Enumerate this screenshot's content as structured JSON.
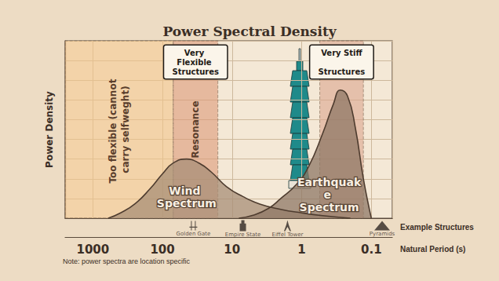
{
  "chart_data": {
    "type": "area",
    "title": "Power Spectral Density",
    "ylabel": "Power Density",
    "xlabel": "Natural Period (s)",
    "log": "x",
    "grid": true,
    "tick_labels": "x",
    "xlim": [
      2500,
      0.05
    ],
    "xticks": [
      1000,
      100,
      10,
      1,
      0.1
    ],
    "ylim": [
      0,
      9
    ],
    "yticks": [
      0,
      1,
      2,
      3,
      4,
      5,
      6,
      7,
      8,
      9
    ],
    "series": [
      {
        "name": "Wind Spectrum",
        "color": "#a88f77",
        "x": [
          600,
          400,
          250,
          150,
          100,
          70,
          45,
          30,
          20,
          12,
          7,
          4,
          2,
          1,
          0.5,
          0.2
        ],
        "values": [
          0,
          0.27,
          0.72,
          1.5,
          2.25,
          2.8,
          3.0,
          2.8,
          2.35,
          1.6,
          1.1,
          0.72,
          0.45,
          0.27,
          0.13,
          0
        ]
      },
      {
        "name": "Earthquake Spectrum",
        "color": "#8f7866",
        "x": [
          8,
          5,
          3,
          2,
          1.2,
          0.8,
          0.5,
          0.35,
          0.28,
          0.22,
          0.17,
          0.13,
          0.1
        ],
        "values": [
          0,
          0.15,
          0.5,
          1.0,
          1.7,
          2.6,
          4.3,
          5.8,
          6.5,
          6.2,
          4.6,
          2.0,
          0
        ]
      }
    ],
    "regions": [
      {
        "label": "Too flexible (cannot carry selfweght)",
        "from": 2500,
        "to": 70,
        "color": "#f2c58a"
      },
      {
        "label": "Resonance",
        "heading": "Very Flexible Structures",
        "from": 70,
        "to": 16,
        "color": "#dc9a78"
      },
      {
        "heading": "Very Stiff Structures",
        "from": 0.55,
        "to": 0.13,
        "color": "#dba58e"
      }
    ],
    "structures": {
      "label": "Example Structures",
      "names": [
        "Golden Gate",
        "Empire State",
        "Eiffel Tower",
        "Pyramids"
      ],
      "x": [
        36,
        7,
        1.6,
        0.07
      ]
    },
    "note": "Note: power spectra are location specific"
  }
}
